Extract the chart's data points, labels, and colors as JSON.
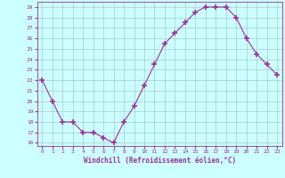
{
  "x": [
    0,
    1,
    2,
    3,
    4,
    5,
    6,
    7,
    8,
    9,
    10,
    11,
    12,
    13,
    14,
    15,
    16,
    17,
    18,
    19,
    20,
    21,
    22,
    23
  ],
  "y": [
    22,
    20,
    18,
    18,
    17,
    17,
    16.5,
    16,
    18,
    19.5,
    21.5,
    23.5,
    25.5,
    26.5,
    27.5,
    28.5,
    29,
    29,
    29,
    28,
    26,
    24.5,
    23.5,
    22.5
  ],
  "xlabel": "Windchill (Refroidissement éolien,°C)",
  "xlim": [
    -0.5,
    23.5
  ],
  "ylim": [
    15.7,
    29.5
  ],
  "yticks": [
    16,
    17,
    18,
    19,
    20,
    21,
    22,
    23,
    24,
    25,
    26,
    27,
    28,
    29
  ],
  "xticks": [
    0,
    1,
    2,
    3,
    4,
    5,
    6,
    7,
    8,
    9,
    10,
    11,
    12,
    13,
    14,
    15,
    16,
    17,
    18,
    19,
    20,
    21,
    22,
    23
  ],
  "line_color": "#993399",
  "marker": "+",
  "markersize": 4,
  "markeredgewidth": 1.2,
  "bg_color": "#ccffff",
  "grid_color": "#aacccc",
  "label_color": "#993399",
  "tick_color": "#993399",
  "spine_color": "#993399",
  "xlabel_fontsize": 5.5,
  "tick_fontsize": 4.5
}
